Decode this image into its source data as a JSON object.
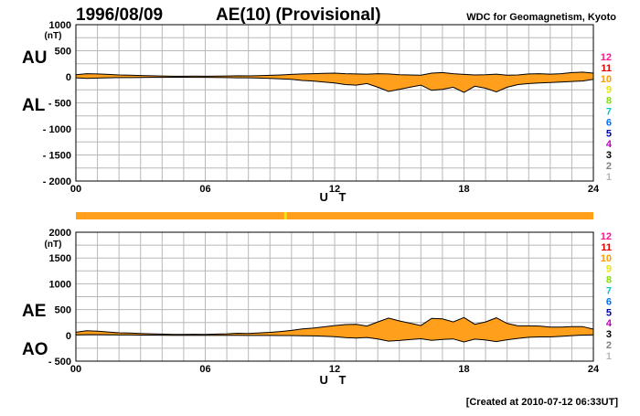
{
  "header": {
    "date": "1996/08/09",
    "title": "AE(10) (Provisional)",
    "source": "WDC for Geomagnetism, Kyoto"
  },
  "footer": {
    "created": "[Created at 2010-07-12 06:33UT]"
  },
  "colors": {
    "fill": "#ff9f1c",
    "line": "#000000",
    "grid": "#b8b8b8",
    "qualityBar": "#ff9f1c",
    "qualityMark": "#e6e619"
  },
  "levels": {
    "labels": [
      "12",
      "11",
      "10",
      "9",
      "8",
      "7",
      "6",
      "5",
      "4",
      "3",
      "2",
      "1"
    ],
    "colors": [
      "#ff1493",
      "#e00000",
      "#ff9900",
      "#e6e600",
      "#80e000",
      "#00c8c8",
      "#0070ff",
      "#0000aa",
      "#c000c0",
      "#000000",
      "#808080",
      "#b8b8b8"
    ]
  },
  "quality_bar": {
    "marks_ut_hours": [
      9.7
    ]
  },
  "chart_data": [
    {
      "type": "area",
      "panel": "AU/AL",
      "series_labels": [
        "AU",
        "AL"
      ],
      "unit": "(nT)",
      "xlabel": "U T",
      "xlim": [
        0,
        24
      ],
      "x_ticks": [
        "00",
        "06",
        "12",
        "18",
        "24"
      ],
      "ylim": [
        -2000,
        1000
      ],
      "y_ticks": [
        "1000",
        "500",
        "0",
        "- 500",
        "- 1000",
        "- 1500",
        "- 2000"
      ],
      "grid": true,
      "x": [
        0,
        0.5,
        1,
        1.5,
        2,
        2.5,
        3,
        3.5,
        4,
        4.5,
        5,
        5.5,
        6,
        6.5,
        7,
        7.5,
        8,
        8.5,
        9,
        9.5,
        10,
        10.5,
        11,
        11.5,
        12,
        12.5,
        13,
        13.5,
        14,
        14.5,
        15,
        15.5,
        16,
        16.5,
        17,
        17.5,
        18,
        18.5,
        19,
        19.5,
        20,
        20.5,
        21,
        21.5,
        22,
        22.5,
        23,
        23.5,
        24
      ],
      "series": [
        {
          "name": "AU",
          "values": [
            40,
            60,
            55,
            45,
            35,
            30,
            25,
            20,
            15,
            10,
            10,
            12,
            10,
            12,
            15,
            20,
            18,
            22,
            28,
            35,
            45,
            55,
            60,
            65,
            70,
            60,
            55,
            50,
            60,
            55,
            40,
            35,
            30,
            70,
            80,
            60,
            45,
            35,
            40,
            50,
            30,
            35,
            55,
            60,
            50,
            60,
            80,
            90,
            70
          ]
        },
        {
          "name": "AL",
          "values": [
            -20,
            -30,
            -25,
            -20,
            -15,
            -15,
            -12,
            -10,
            -10,
            -8,
            -8,
            -10,
            -10,
            -12,
            -15,
            -20,
            -20,
            -25,
            -30,
            -40,
            -50,
            -70,
            -80,
            -100,
            -120,
            -150,
            -160,
            -130,
            -200,
            -280,
            -240,
            -200,
            -160,
            -260,
            -240,
            -200,
            -300,
            -180,
            -220,
            -290,
            -200,
            -150,
            -130,
            -120,
            -110,
            -100,
            -90,
            -80,
            -50
          ]
        }
      ]
    },
    {
      "type": "area",
      "panel": "AE/AO",
      "series_labels": [
        "AE",
        "AO"
      ],
      "unit": "(nT)",
      "xlabel": "U T",
      "xlim": [
        0,
        24
      ],
      "x_ticks": [
        "00",
        "06",
        "12",
        "18",
        "24"
      ],
      "ylim": [
        -500,
        2000
      ],
      "y_ticks": [
        "2000",
        "1500",
        "1000",
        "500",
        "0",
        "- 500"
      ],
      "grid": true,
      "x": [
        0,
        0.5,
        1,
        1.5,
        2,
        2.5,
        3,
        3.5,
        4,
        4.5,
        5,
        5.5,
        6,
        6.5,
        7,
        7.5,
        8,
        8.5,
        9,
        9.5,
        10,
        10.5,
        11,
        11.5,
        12,
        12.5,
        13,
        13.5,
        14,
        14.5,
        15,
        15.5,
        16,
        16.5,
        17,
        17.5,
        18,
        18.5,
        19,
        19.5,
        20,
        20.5,
        21,
        21.5,
        22,
        22.5,
        23,
        23.5,
        24
      ],
      "series": [
        {
          "name": "AE",
          "values": [
            60,
            90,
            80,
            65,
            50,
            45,
            37,
            30,
            25,
            18,
            18,
            22,
            20,
            24,
            30,
            40,
            38,
            47,
            58,
            75,
            95,
            125,
            140,
            165,
            190,
            210,
            215,
            180,
            260,
            335,
            280,
            235,
            190,
            330,
            320,
            260,
            345,
            215,
            260,
            340,
            230,
            185,
            185,
            180,
            160,
            160,
            170,
            170,
            120
          ]
        },
        {
          "name": "AO",
          "values": [
            10,
            15,
            15,
            12,
            10,
            8,
            6,
            5,
            3,
            1,
            1,
            1,
            0,
            0,
            0,
            0,
            -1,
            -2,
            -1,
            -3,
            -3,
            -8,
            -10,
            -18,
            -25,
            -45,
            -52,
            -40,
            -70,
            -112,
            -100,
            -82,
            -65,
            -95,
            -80,
            -70,
            -128,
            -72,
            -90,
            -120,
            -85,
            -58,
            -38,
            -30,
            -30,
            -20,
            -5,
            5,
            10
          ]
        }
      ]
    }
  ]
}
